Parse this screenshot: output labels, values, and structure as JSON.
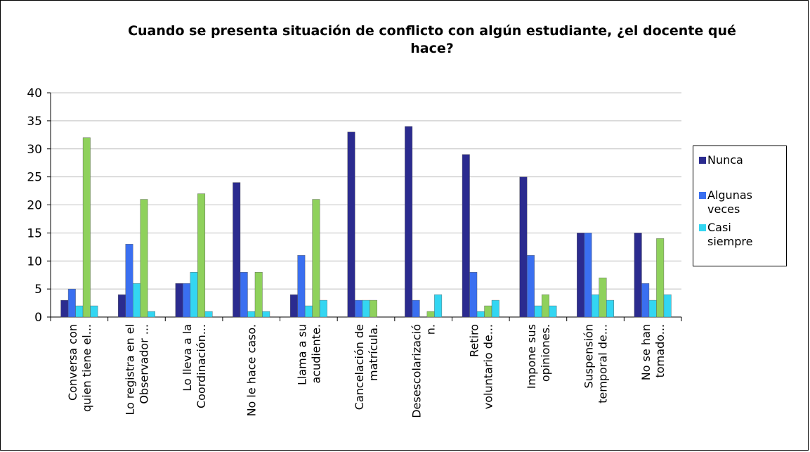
{
  "chart_data": {
    "type": "bar",
    "title": "Cuando se presenta situación de conflicto con algún estudiante, ¿el docente qué hace?",
    "xlabel": "",
    "ylabel": "",
    "ylim": [
      0,
      40
    ],
    "yticks": [
      0,
      5,
      10,
      15,
      20,
      25,
      30,
      35,
      40
    ],
    "grid": true,
    "legend_position": "right",
    "categories": [
      [
        "Conversa con",
        "quien tiene el..."
      ],
      [
        "Lo registra en el",
        "Observador ..."
      ],
      [
        "Lo lleva a la",
        "Coordinación..."
      ],
      [
        "No le hace caso."
      ],
      [
        "Llama a su",
        "acudiente."
      ],
      [
        "Cancelación de",
        "matrícula."
      ],
      [
        "Desescolarizació",
        "n."
      ],
      [
        "Retiro",
        "voluntario de..."
      ],
      [
        "Impone sus",
        "opiniones."
      ],
      [
        "Suspensión",
        "temporal de..."
      ],
      [
        "No se han",
        "tomado..."
      ]
    ],
    "series": [
      {
        "name": "Nunca",
        "color": "#2b2b8f",
        "values": [
          3,
          4,
          6,
          24,
          4,
          33,
          34,
          29,
          25,
          15,
          15
        ]
      },
      {
        "name": "Algunas veces",
        "color": "#3a6ff0",
        "values": [
          5,
          13,
          6,
          8,
          11,
          3,
          3,
          8,
          11,
          15,
          6
        ]
      },
      {
        "name": "Casi siempre",
        "color": "#33d6f2",
        "values": [
          2,
          6,
          8,
          1,
          2,
          3,
          0,
          1,
          2,
          4,
          3
        ]
      },
      {
        "name": "",
        "color": "#8fd15c",
        "values": [
          32,
          21,
          22,
          8,
          21,
          3,
          1,
          2,
          4,
          7,
          14
        ]
      },
      {
        "name": "",
        "color": "#33d6f2",
        "values": [
          2,
          1,
          1,
          1,
          3,
          0,
          4,
          3,
          2,
          3,
          4
        ]
      }
    ]
  },
  "legend": {
    "items": [
      {
        "label": "Nunca",
        "color": "#2b2b8f"
      },
      {
        "label": "Algunas veces",
        "color": "#3a6ff0"
      },
      {
        "label": "Casi siempre",
        "color": "#33d6f2"
      }
    ]
  }
}
